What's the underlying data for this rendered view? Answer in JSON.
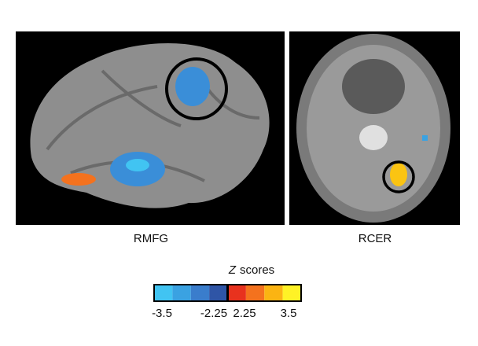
{
  "panels": [
    {
      "label": "RMFG"
    },
    {
      "label": "RCER"
    }
  ],
  "colorbar": {
    "variable": "Z",
    "title": "scores",
    "colors": [
      "#41c4f2",
      "#3aa2e2",
      "#3a7dcc",
      "#2f55a6",
      "#e8321e",
      "#f4721e",
      "#fbb412",
      "#fff226"
    ],
    "ticks": [
      "-3.5",
      "-2.25",
      "2.25",
      "3.5"
    ]
  }
}
